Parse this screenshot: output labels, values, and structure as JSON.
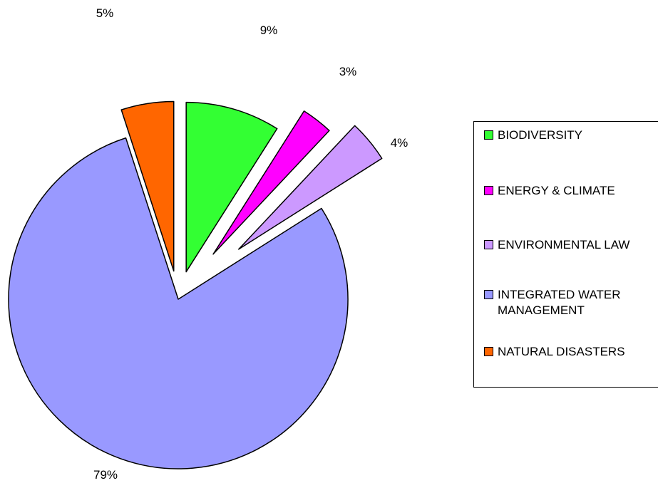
{
  "chart_data": {
    "type": "pie",
    "exploded": true,
    "legend_position": "right",
    "slices": [
      {
        "label": "BIODIVERSITY",
        "value": 9,
        "display": "9%",
        "color": "#33ff33"
      },
      {
        "label": "ENERGY & CLIMATE",
        "value": 3,
        "display": "3%",
        "color": "#ff00ff"
      },
      {
        "label": "ENVIRONMENTAL LAW",
        "value": 4,
        "display": "4%",
        "color": "#cc99ff"
      },
      {
        "label": "INTEGRATED WATER MANAGEMENT",
        "value": 79,
        "display": "79%",
        "color": "#9999ff"
      },
      {
        "label": "NATURAL DISASTERS",
        "value": 5,
        "display": "5%",
        "color": "#ff6600"
      }
    ]
  }
}
